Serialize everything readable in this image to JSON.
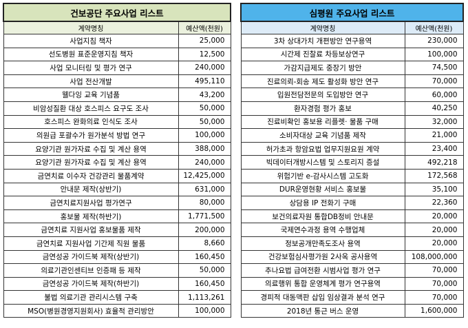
{
  "left": {
    "title": "건보공단 주요사업 리스트",
    "columns": [
      "계약명칭",
      "예산액(천원)"
    ],
    "rows": [
      [
        "사업지침 책자",
        "25,000"
      ],
      [
        "선도병원 표준운영지침 책자",
        "12,500"
      ],
      [
        "사업 모니터링 및 평가 연구",
        "240,000"
      ],
      [
        "사업 전산개발",
        "495,110"
      ],
      [
        "웰다잉 교육 기념품",
        "43,200"
      ],
      [
        "비암성질환 대상 호스피스 요구도 조사",
        "50,000"
      ],
      [
        "호스피스 완화의료 인식도 조사",
        "50,000"
      ],
      [
        "의원급 포괄수가 원가분석 방법 연구",
        "100,000"
      ],
      [
        "요양기관 원가자료 수집 및 계산 용역",
        "388,000"
      ],
      [
        "요양기관 원가자료 수집 및 계산 용역",
        "240,000"
      ],
      [
        "금연치료 이수자 건강관리 물품계약",
        "12,425,000"
      ],
      [
        "안내문 제작(상반기)",
        "631,000"
      ],
      [
        "금연치료지원사업 평가연구",
        "80,000"
      ],
      [
        "홍보물 제작(하반기)",
        "1,771,500"
      ],
      [
        "금연치료 지원사업 홍보물품 제작",
        "200,000"
      ],
      [
        "금연치료 지원사업 기간제 직원 물품",
        "8,660"
      ],
      [
        "금연성공 가이드북 제작(상반기)",
        "160,450"
      ],
      [
        "의료기관인센티브 인증패 등 제작",
        "50,000"
      ],
      [
        "금연성공 가이드북 제작(하반기)",
        "160,450"
      ],
      [
        "불법 의료기관 관리시스템 구축",
        "1,113,261"
      ],
      [
        "MSO(병원경영지원회사) 효율적 관리방안",
        "100,000"
      ]
    ]
  },
  "right": {
    "title": "심평원 주요사업 리스트",
    "columns": [
      "계약명칭",
      "예산액(천원)"
    ],
    "rows": [
      [
        "3차 상대가치 개편방안 연구용역",
        "230,000"
      ],
      [
        "시간제 진찰료 차등보상연구",
        "100,000"
      ],
      [
        "가감지급제도 중장기 방안",
        "74,500"
      ],
      [
        "진료의뢰-회송 제도 활성화 방안 연구",
        "70,000"
      ],
      [
        "입원전담전문의 도입방안 연구",
        "60,000"
      ],
      [
        "환자경험 평가 홍보",
        "40,250"
      ],
      [
        "진료비확인 홍보용 리플렛· 물품 구매",
        "32,000"
      ],
      [
        "소비자대상 교육 기념품 제작",
        "21,000"
      ],
      [
        "허가초과 항암요법 업무지원요원 계약",
        "23,400"
      ],
      [
        "빅데이터개방시스템 및 스토리지 증설",
        "492,218"
      ],
      [
        "위험기반 e-감사시스템 고도화",
        "172,568"
      ],
      [
        "DUR운영현황 서비스 홍보물",
        "35,100"
      ],
      [
        "상담용 IP 전화기 구매",
        "22,360"
      ],
      [
        "보건의료자원 통합DB정비 안내문",
        "20,000"
      ],
      [
        "국제연수과정 용역 수행업체",
        "20,000"
      ],
      [
        "정보공개만족도조사 용역",
        "20,000"
      ],
      [
        "건강보험심사평가원 2사옥 공사용역",
        "108,000,000"
      ],
      [
        "추나요법 급여전환 시범사업 평가 연구",
        "70,000"
      ],
      [
        "의료행위 통합 운영체계 평가 연구용역",
        "70,000"
      ],
      [
        "경피적 대동맥판 삽입 임상결과 분석 연구",
        "70,000"
      ],
      [
        "2018년 통근 버스 운영",
        "1,600,000"
      ]
    ]
  }
}
